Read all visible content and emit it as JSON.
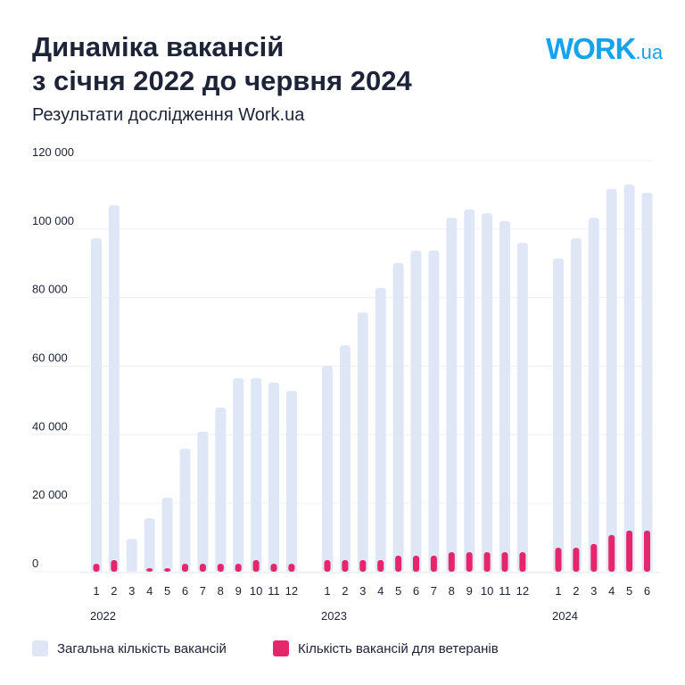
{
  "header": {
    "title_line1": "Динаміка вакансій",
    "title_line2": "з січня 2022 до червня 2024",
    "subtitle": "Результати дослідження Work.ua",
    "logo": "WORK.ua"
  },
  "colors": {
    "total": "#dfe7f7",
    "veterans": "#e6266a",
    "text": "#1c2238",
    "logo": "#17a3ec"
  },
  "chart_data": {
    "type": "bar",
    "title": "Динаміка вакансій з січня 2022 до червня 2024",
    "ylim": [
      0,
      120000
    ],
    "yticks": [
      "0",
      "20 000",
      "40 000",
      "60 000",
      "80 000",
      "100 000",
      "120 000"
    ],
    "groups": [
      {
        "year": "2022",
        "categories": [
          "1",
          "2",
          "3",
          "4",
          "5",
          "6",
          "7",
          "8",
          "9",
          "10",
          "11",
          "12"
        ]
      },
      {
        "year": "2023",
        "categories": [
          "1",
          "2",
          "3",
          "4",
          "5",
          "6",
          "7",
          "8",
          "9",
          "10",
          "11",
          "12"
        ]
      },
      {
        "year": "2024",
        "categories": [
          "1",
          "2",
          "3",
          "4",
          "5",
          "6"
        ]
      }
    ],
    "series": [
      {
        "name": "Загальна кількість вакансій",
        "values": [
          97300,
          107000,
          9600,
          15600,
          21600,
          35900,
          40900,
          47900,
          56500,
          56500,
          55200,
          52800,
          60100,
          66100,
          75700,
          82800,
          90100,
          93700,
          93700,
          103300,
          105700,
          104600,
          102300,
          96000,
          91400,
          97300,
          103300,
          111700,
          113000,
          110600
        ]
      },
      {
        "name": "Кількість вакансій для ветеранів",
        "values": [
          2300,
          3400,
          0,
          1000,
          1000,
          2300,
          2300,
          2300,
          2300,
          3400,
          2300,
          2300,
          3400,
          3400,
          3400,
          3400,
          4700,
          4700,
          4700,
          5700,
          5700,
          5700,
          5700,
          5700,
          7000,
          7000,
          8100,
          10700,
          12000,
          12000
        ]
      }
    ],
    "grid": true,
    "legend": "bottom-left"
  }
}
